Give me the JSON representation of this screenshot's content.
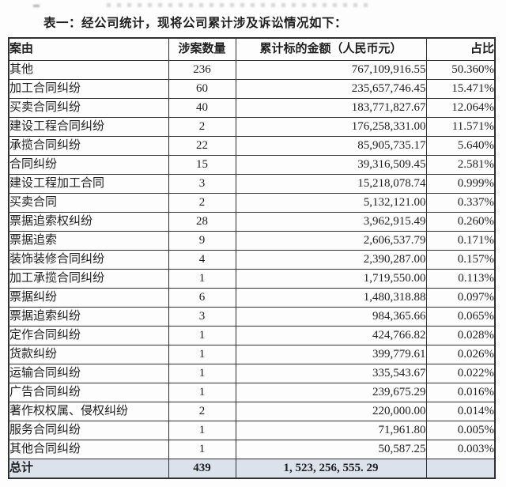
{
  "page": {
    "title": "表一：经公司统计，现将公司累计涉及诉讼情况如下："
  },
  "table": {
    "columns": [
      "案由",
      "涉案数量",
      "累计标的金额（人民币元）",
      "占比"
    ],
    "rows": [
      {
        "cause": "其他",
        "count": "236",
        "amount": "767,109,916.55",
        "ratio": "50.360%"
      },
      {
        "cause": "加工合同纠纷",
        "count": "60",
        "amount": "235,657,746.45",
        "ratio": "15.471%"
      },
      {
        "cause": "买卖合同纠纷",
        "count": "40",
        "amount": "183,771,827.67",
        "ratio": "12.064%"
      },
      {
        "cause": "建设工程合同纠纷",
        "count": "2",
        "amount": "176,258,331.00",
        "ratio": "11.571%"
      },
      {
        "cause": "承揽合同纠纷",
        "count": "22",
        "amount": "85,905,735.17",
        "ratio": "5.640%"
      },
      {
        "cause": "合同纠纷",
        "count": "15",
        "amount": "39,316,509.45",
        "ratio": "2.581%"
      },
      {
        "cause": "建设工程加工合同",
        "count": "3",
        "amount": "15,218,078.74",
        "ratio": "0.999%"
      },
      {
        "cause": "买卖合同",
        "count": "2",
        "amount": "5,132,121.00",
        "ratio": "0.337%"
      },
      {
        "cause": "票据追索权纠纷",
        "count": "28",
        "amount": "3,962,915.49",
        "ratio": "0.260%"
      },
      {
        "cause": "票据追索",
        "count": "9",
        "amount": "2,606,537.79",
        "ratio": "0.171%"
      },
      {
        "cause": "装饰装修合同纠纷",
        "count": "4",
        "amount": "2,390,287.00",
        "ratio": "0.157%"
      },
      {
        "cause": "加工承揽合同纠纷",
        "count": "1",
        "amount": "1,719,550.00",
        "ratio": "0.113%"
      },
      {
        "cause": "票据纠纷",
        "count": "6",
        "amount": "1,480,318.88",
        "ratio": "0.097%"
      },
      {
        "cause": "票据追索纠纷",
        "count": "3",
        "amount": "984,365.66",
        "ratio": "0.065%"
      },
      {
        "cause": "定作合同纠纷",
        "count": "1",
        "amount": "424,766.82",
        "ratio": "0.028%"
      },
      {
        "cause": "货款纠纷",
        "count": "1",
        "amount": "399,779.61",
        "ratio": "0.026%"
      },
      {
        "cause": "运输合同纠纷",
        "count": "1",
        "amount": "335,543.67",
        "ratio": "0.022%"
      },
      {
        "cause": "广告合同纠纷",
        "count": "1",
        "amount": "239,675.29",
        "ratio": "0.016%"
      },
      {
        "cause": "著作权权属、侵权纠纷",
        "count": "2",
        "amount": "220,000.00",
        "ratio": "0.014%"
      },
      {
        "cause": "服务合同纠纷",
        "count": "1",
        "amount": "71,961.80",
        "ratio": "0.005%"
      },
      {
        "cause": "其他合同纠纷",
        "count": "1",
        "amount": "50,587.25",
        "ratio": "0.003%"
      }
    ],
    "total": {
      "label": "总计",
      "count": "439",
      "amount": "1, 523, 256, 555. 29",
      "ratio": ""
    }
  },
  "theme": {
    "total_row_bg": "#dbe2ec",
    "border_color": "#2f2f2f",
    "text_color": "#1f1f1f"
  }
}
